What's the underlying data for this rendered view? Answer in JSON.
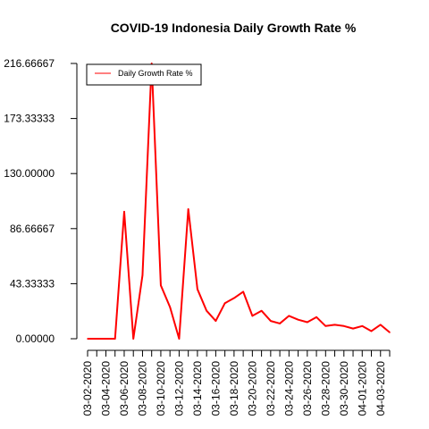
{
  "chart_data": {
    "type": "line",
    "title": "COVID-19 Indonesia Daily Growth Rate %",
    "xlabel": "",
    "ylabel": "",
    "x": [
      "03-02-2020",
      "03-03-2020",
      "03-04-2020",
      "03-05-2020",
      "03-06-2020",
      "03-07-2020",
      "03-08-2020",
      "03-09-2020",
      "03-10-2020",
      "03-11-2020",
      "03-12-2020",
      "03-13-2020",
      "03-14-2020",
      "03-15-2020",
      "03-16-2020",
      "03-17-2020",
      "03-18-2020",
      "03-19-2020",
      "03-20-2020",
      "03-21-2020",
      "03-22-2020",
      "03-23-2020",
      "03-24-2020",
      "03-25-2020",
      "03-26-2020",
      "03-27-2020",
      "03-28-2020",
      "03-29-2020",
      "03-30-2020",
      "03-31-2020",
      "04-01-2020",
      "04-02-2020",
      "04-03-2020",
      "04-04-2020"
    ],
    "x_tick_labels": [
      "03-02-2020",
      "03-04-2020",
      "03-06-2020",
      "03-08-2020",
      "03-10-2020",
      "03-12-2020",
      "03-14-2020",
      "03-16-2020",
      "03-18-2020",
      "03-20-2020",
      "03-22-2020",
      "03-24-2020",
      "03-26-2020",
      "03-28-2020",
      "03-30-2020",
      "04-01-2020",
      "04-03-2020"
    ],
    "y_ticks": [
      0,
      43.33333,
      86.66667,
      130,
      173.33333,
      216.66667
    ],
    "y_tick_labels": [
      "0.00000",
      "43.33333",
      "86.66667",
      "130.00000",
      "173.33333",
      "216.66667"
    ],
    "ylim": [
      0,
      216.66667
    ],
    "grid": false,
    "legend_position": "top-left",
    "series": [
      {
        "name": "Daily Growth Rate %",
        "color": "#ff0000",
        "values": [
          0,
          0,
          0,
          0,
          100,
          0,
          50,
          216.66667,
          42,
          25,
          0,
          102,
          39,
          22,
          14,
          28,
          32,
          37,
          18,
          22,
          14,
          12,
          18,
          15,
          13,
          17,
          10,
          11,
          10,
          8,
          10,
          6,
          11,
          5
        ]
      }
    ]
  }
}
